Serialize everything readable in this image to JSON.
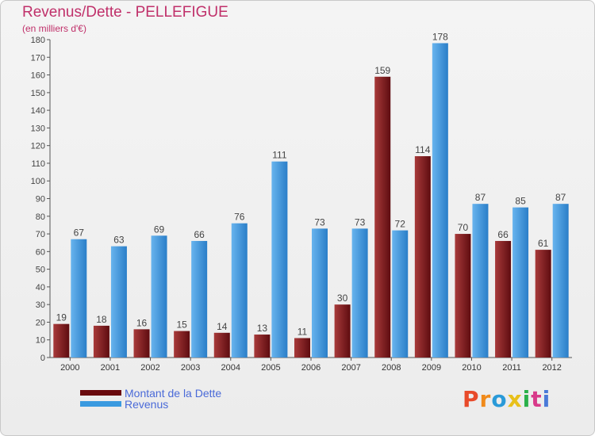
{
  "title": "Revenus/Dette - PELLEFIGUE",
  "subtitle": "(en milliers d'€)",
  "logo": {
    "text": "Proxiti",
    "colors": [
      "#e84a2a",
      "#f08a1a",
      "#2a9ad8",
      "#e8c01a",
      "#2ab04a",
      "#d83a8a",
      "#4a7ad8"
    ]
  },
  "colors": {
    "debt": "#7a1418",
    "debt_light": "#a83a3a",
    "revenue": "#3a8ed8",
    "revenue_light": "#68b4ee",
    "title": "#c0306a",
    "legend_text": "#4a6ad8"
  },
  "chart_data": {
    "type": "bar",
    "title": "Revenus/Dette - PELLEFIGUE",
    "ylabel": "(en milliers d'€)",
    "xlabel": "",
    "ylim": [
      0,
      180
    ],
    "yticks": [
      0,
      10,
      20,
      30,
      40,
      50,
      60,
      70,
      80,
      90,
      100,
      110,
      120,
      130,
      140,
      150,
      160,
      170,
      180
    ],
    "grid": false,
    "legend_position": "bottom-left",
    "categories": [
      "2000",
      "2001",
      "2002",
      "2003",
      "2004",
      "2005",
      "2006",
      "2007",
      "2008",
      "2009",
      "2010",
      "2011",
      "2012"
    ],
    "series": [
      {
        "name": "Montant de la Dette",
        "key": "debt",
        "values": [
          19,
          18,
          16,
          15,
          14,
          13,
          11,
          30,
          159,
          114,
          70,
          66,
          61
        ]
      },
      {
        "name": "Revenus",
        "key": "revenue",
        "values": [
          67,
          63,
          69,
          66,
          76,
          111,
          73,
          73,
          72,
          178,
          87,
          85,
          87
        ]
      }
    ]
  }
}
